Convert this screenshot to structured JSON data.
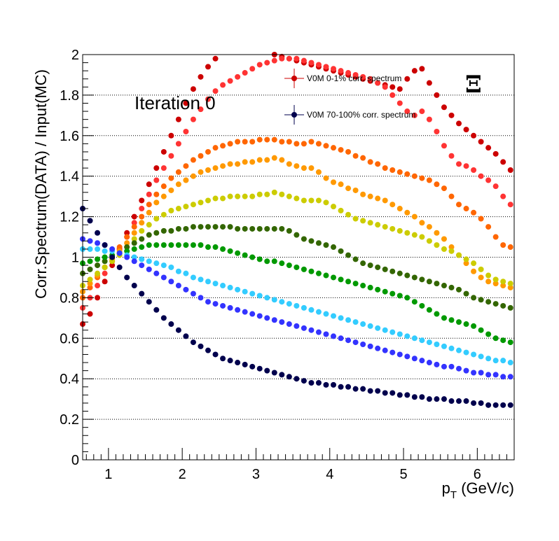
{
  "chart_data": {
    "type": "scatter",
    "title": "",
    "xlabel_main": "p",
    "xlabel_sub": "T",
    "xlabel_rest": " (GeV/c)",
    "ylabel": "Corr.Spectrum(DATA) / Input(MC)",
    "xlim": [
      0.65,
      6.5
    ],
    "ylim": [
      0,
      2
    ],
    "x_ticks": [
      "1",
      "2",
      "3",
      "4",
      "5",
      "6"
    ],
    "y_ticks": [
      "0",
      "0.2",
      "0.4",
      "0.6",
      "0.8",
      "1",
      "1.2",
      "1.4",
      "1.6",
      "1.8",
      "2"
    ],
    "grid_y": true,
    "legend_placement": "top-center",
    "legend_entries": [
      {
        "label": "V0M 0-1% corr. spectrum",
        "color": "#cc0000"
      },
      {
        "label": "V0M 70-100% corr. spectrum",
        "color": "#00004d"
      }
    ],
    "annotation": "Iteration 0",
    "particle_label": "Ξ",
    "x": [
      0.65,
      0.75,
      0.85,
      0.95,
      1.05,
      1.15,
      1.25,
      1.35,
      1.45,
      1.55,
      1.65,
      1.75,
      1.85,
      1.95,
      2.05,
      2.15,
      2.25,
      2.35,
      2.45,
      2.55,
      2.65,
      2.75,
      2.85,
      2.95,
      3.05,
      3.15,
      3.25,
      3.35,
      3.45,
      3.55,
      3.65,
      3.75,
      3.85,
      3.95,
      4.05,
      4.15,
      4.25,
      4.35,
      4.45,
      4.55,
      4.65,
      4.75,
      4.85,
      4.95,
      5.05,
      5.15,
      5.25,
      5.35,
      5.45,
      5.55,
      5.65,
      5.75,
      5.85,
      5.95,
      6.05,
      6.15,
      6.25,
      6.35,
      6.45
    ],
    "series": [
      {
        "name": "V0M 0-1% corr. spectrum",
        "color": "#cc0000",
        "values": [
          0.67,
          0.72,
          0.8,
          0.88,
          0.96,
          1.04,
          1.12,
          1.2,
          1.28,
          1.36,
          1.44,
          1.52,
          1.6,
          1.68,
          1.76,
          1.83,
          1.89,
          1.94,
          1.98,
          2.01,
          2.03,
          2.04,
          2.04,
          2.03,
          2.02,
          2.01,
          2.0,
          1.99,
          1.98,
          1.97,
          1.96,
          1.95,
          1.94,
          1.93,
          1.92,
          1.91,
          1.9,
          1.89,
          1.88,
          1.87,
          1.86,
          1.85,
          1.84,
          1.83,
          1.88,
          1.92,
          1.93,
          1.86,
          1.8,
          1.74,
          1.7,
          1.66,
          1.63,
          1.6,
          1.57,
          1.54,
          1.51,
          1.47,
          1.43
        ]
      },
      {
        "name": "",
        "color": "#ff3333",
        "values": [
          0.75,
          0.8,
          0.86,
          0.92,
          0.98,
          1.04,
          1.1,
          1.17,
          1.24,
          1.31,
          1.38,
          1.44,
          1.5,
          1.56,
          1.62,
          1.68,
          1.73,
          1.78,
          1.82,
          1.85,
          1.87,
          1.89,
          1.91,
          1.93,
          1.95,
          1.96,
          1.97,
          1.98,
          1.98,
          1.98,
          1.97,
          1.96,
          1.95,
          1.94,
          1.93,
          1.92,
          1.91,
          1.9,
          1.89,
          1.88,
          1.86,
          1.84,
          1.8,
          1.76,
          1.72,
          1.7,
          1.72,
          1.68,
          1.62,
          1.55,
          1.5,
          1.46,
          1.45,
          1.43,
          1.4,
          1.38,
          1.35,
          1.3,
          1.26
        ]
      },
      {
        "name": "",
        "color": "#ff6600",
        "values": [
          0.8,
          0.85,
          0.9,
          0.95,
          1.0,
          1.05,
          1.1,
          1.15,
          1.2,
          1.26,
          1.31,
          1.35,
          1.39,
          1.42,
          1.45,
          1.48,
          1.5,
          1.52,
          1.54,
          1.55,
          1.56,
          1.57,
          1.57,
          1.57,
          1.58,
          1.58,
          1.58,
          1.57,
          1.57,
          1.56,
          1.56,
          1.57,
          1.56,
          1.55,
          1.54,
          1.53,
          1.52,
          1.5,
          1.49,
          1.47,
          1.46,
          1.44,
          1.43,
          1.42,
          1.41,
          1.4,
          1.39,
          1.38,
          1.36,
          1.34,
          1.3,
          1.26,
          1.24,
          1.22,
          1.19,
          1.15,
          1.1,
          1.06,
          1.05
        ]
      },
      {
        "name": "",
        "color": "#ff9900",
        "values": [
          0.83,
          0.87,
          0.91,
          0.95,
          0.99,
          1.03,
          1.07,
          1.12,
          1.17,
          1.22,
          1.27,
          1.3,
          1.33,
          1.36,
          1.38,
          1.4,
          1.42,
          1.43,
          1.44,
          1.45,
          1.46,
          1.46,
          1.47,
          1.47,
          1.48,
          1.48,
          1.49,
          1.48,
          1.46,
          1.45,
          1.44,
          1.44,
          1.42,
          1.39,
          1.37,
          1.36,
          1.34,
          1.33,
          1.31,
          1.3,
          1.29,
          1.28,
          1.26,
          1.24,
          1.22,
          1.2,
          1.17,
          1.15,
          1.12,
          1.09,
          1.05,
          1.01,
          0.97,
          0.93,
          0.9,
          0.88,
          0.87,
          0.86,
          0.85
        ]
      },
      {
        "name": "",
        "color": "#cccc00",
        "values": [
          0.86,
          0.89,
          0.92,
          0.95,
          0.98,
          1.01,
          1.05,
          1.09,
          1.13,
          1.16,
          1.19,
          1.21,
          1.23,
          1.24,
          1.25,
          1.26,
          1.27,
          1.28,
          1.29,
          1.29,
          1.3,
          1.3,
          1.3,
          1.3,
          1.31,
          1.31,
          1.32,
          1.31,
          1.3,
          1.29,
          1.28,
          1.28,
          1.28,
          1.27,
          1.25,
          1.23,
          1.21,
          1.19,
          1.18,
          1.17,
          1.16,
          1.15,
          1.14,
          1.13,
          1.12,
          1.11,
          1.1,
          1.08,
          1.06,
          1.04,
          1.03,
          1.01,
          0.99,
          0.97,
          0.94,
          0.91,
          0.89,
          0.88,
          0.87
        ]
      },
      {
        "name": "",
        "color": "#336600",
        "values": [
          0.92,
          0.94,
          0.96,
          0.98,
          1.0,
          1.02,
          1.05,
          1.07,
          1.09,
          1.11,
          1.12,
          1.13,
          1.13,
          1.14,
          1.14,
          1.15,
          1.15,
          1.15,
          1.15,
          1.15,
          1.15,
          1.14,
          1.14,
          1.14,
          1.14,
          1.14,
          1.14,
          1.14,
          1.13,
          1.11,
          1.09,
          1.08,
          1.07,
          1.06,
          1.05,
          1.03,
          1.01,
          0.99,
          0.97,
          0.96,
          0.95,
          0.94,
          0.93,
          0.92,
          0.91,
          0.9,
          0.89,
          0.88,
          0.87,
          0.86,
          0.85,
          0.84,
          0.82,
          0.8,
          0.79,
          0.78,
          0.77,
          0.76,
          0.75
        ]
      },
      {
        "name": "",
        "color": "#009900",
        "values": [
          0.97,
          0.98,
          0.99,
          1.0,
          1.01,
          1.02,
          1.03,
          1.04,
          1.05,
          1.06,
          1.06,
          1.06,
          1.06,
          1.06,
          1.06,
          1.06,
          1.06,
          1.05,
          1.05,
          1.04,
          1.03,
          1.02,
          1.01,
          1.0,
          0.99,
          0.98,
          0.98,
          0.97,
          0.96,
          0.95,
          0.94,
          0.93,
          0.92,
          0.91,
          0.9,
          0.89,
          0.88,
          0.87,
          0.86,
          0.85,
          0.84,
          0.83,
          0.82,
          0.81,
          0.8,
          0.78,
          0.76,
          0.74,
          0.72,
          0.7,
          0.69,
          0.68,
          0.67,
          0.66,
          0.64,
          0.62,
          0.6,
          0.59,
          0.58
        ]
      },
      {
        "name": "",
        "color": "#33ccff",
        "values": [
          1.04,
          1.04,
          1.04,
          1.03,
          1.03,
          1.02,
          1.01,
          1.0,
          0.99,
          0.98,
          0.97,
          0.96,
          0.95,
          0.93,
          0.92,
          0.9,
          0.89,
          0.88,
          0.87,
          0.86,
          0.85,
          0.84,
          0.83,
          0.82,
          0.81,
          0.8,
          0.79,
          0.78,
          0.77,
          0.76,
          0.75,
          0.74,
          0.73,
          0.72,
          0.71,
          0.7,
          0.69,
          0.68,
          0.67,
          0.66,
          0.65,
          0.64,
          0.63,
          0.62,
          0.61,
          0.6,
          0.59,
          0.58,
          0.57,
          0.56,
          0.55,
          0.54,
          0.53,
          0.52,
          0.51,
          0.5,
          0.49,
          0.49,
          0.48
        ]
      },
      {
        "name": "",
        "color": "#3333ff",
        "values": [
          1.09,
          1.08,
          1.07,
          1.06,
          1.04,
          1.02,
          1.0,
          0.98,
          0.96,
          0.94,
          0.92,
          0.9,
          0.88,
          0.86,
          0.84,
          0.82,
          0.8,
          0.78,
          0.77,
          0.76,
          0.75,
          0.74,
          0.73,
          0.72,
          0.71,
          0.7,
          0.69,
          0.68,
          0.67,
          0.66,
          0.65,
          0.64,
          0.63,
          0.62,
          0.61,
          0.6,
          0.59,
          0.58,
          0.57,
          0.56,
          0.55,
          0.54,
          0.53,
          0.52,
          0.51,
          0.5,
          0.49,
          0.48,
          0.47,
          0.46,
          0.46,
          0.45,
          0.44,
          0.43,
          0.43,
          0.42,
          0.42,
          0.41,
          0.41
        ]
      },
      {
        "name": "V0M 70-100% corr. spectrum",
        "color": "#00004d",
        "values": [
          1.24,
          1.18,
          1.12,
          1.06,
          1.0,
          0.95,
          0.9,
          0.86,
          0.82,
          0.78,
          0.74,
          0.7,
          0.67,
          0.64,
          0.61,
          0.58,
          0.56,
          0.54,
          0.52,
          0.5,
          0.49,
          0.48,
          0.47,
          0.46,
          0.45,
          0.44,
          0.43,
          0.42,
          0.41,
          0.4,
          0.39,
          0.38,
          0.38,
          0.37,
          0.37,
          0.36,
          0.36,
          0.35,
          0.35,
          0.34,
          0.34,
          0.33,
          0.33,
          0.32,
          0.32,
          0.31,
          0.31,
          0.3,
          0.3,
          0.3,
          0.29,
          0.29,
          0.29,
          0.28,
          0.28,
          0.27,
          0.27,
          0.27,
          0.27
        ]
      }
    ]
  }
}
